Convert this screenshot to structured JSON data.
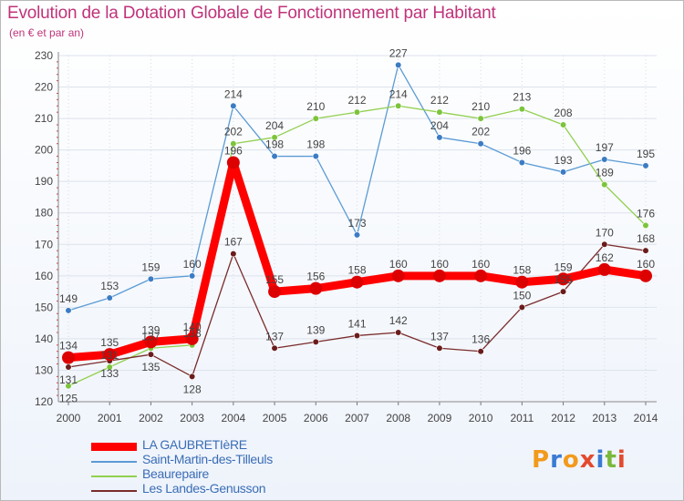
{
  "title": "Evolution de la Dotation Globale de Fonctionnement par Habitant",
  "subtitle": "(en € et par an)",
  "logo": {
    "text": "Proxiti",
    "colors": [
      "#f29a1c",
      "#3a7ad3",
      "#f29a1c",
      "#e34a2e",
      "#3a7ad3",
      "#7ab83c",
      "#e34a2e"
    ]
  },
  "chart_data": {
    "type": "line",
    "title": "Evolution de la Dotation Globale de Fonctionnement par Habitant",
    "subtitle": "(en € et par an)",
    "x": [
      "2000",
      "2001",
      "2002",
      "2003",
      "2004",
      "2005",
      "2006",
      "2007",
      "2008",
      "2009",
      "2010",
      "2011",
      "2012",
      "2013",
      "2014"
    ],
    "y_ticks": [
      "120",
      "130",
      "140",
      "150",
      "160",
      "170",
      "180",
      "190",
      "200",
      "210",
      "220",
      "230"
    ],
    "ylim": [
      120,
      230
    ],
    "grid": true,
    "legend_position": "bottom-left",
    "series": [
      {
        "name": "LA GAUBRETIèRE",
        "color": "#ff0000",
        "marker_color": "#dd0000",
        "width": 9,
        "marker_radius": 7,
        "values": [
          134,
          135,
          139,
          140,
          196,
          155,
          156,
          158,
          160,
          160,
          160,
          158,
          159,
          162,
          160
        ],
        "labels": [
          "134",
          "135",
          "139",
          "140",
          "196",
          "155",
          "156",
          "158",
          "160",
          "160",
          "160",
          "158",
          "159",
          "162",
          "160"
        ]
      },
      {
        "name": "Saint-Martin-des-Tilleuls",
        "color": "#5b9bd5",
        "marker_color": "#3b7cc4",
        "width": 1.3,
        "marker_radius": 3.3,
        "values": [
          149,
          153,
          159,
          160,
          214,
          198,
          198,
          173,
          227,
          204,
          202,
          196,
          193,
          197,
          195
        ],
        "labels": [
          "149",
          "153",
          "159",
          "160",
          "214",
          "198",
          "198",
          "173",
          "227",
          "204",
          "202",
          "196",
          "193",
          "197",
          "195"
        ]
      },
      {
        "name": "Beaurepaire",
        "color": "#92d050",
        "marker_color": "#7cc43c",
        "width": 1.3,
        "marker_radius": 3.3,
        "values": [
          125,
          131,
          137,
          138,
          202,
          204,
          210,
          212,
          214,
          212,
          210,
          213,
          208,
          189,
          176
        ],
        "labels": [
          "125",
          "131",
          "137",
          "138",
          "202",
          "204",
          "210",
          "212",
          "214",
          "212",
          "210",
          "213",
          "208",
          "189",
          "176"
        ]
      },
      {
        "name": "Les Landes-Genusson",
        "color": "#7b2c2c",
        "marker_color": "#6a1c1c",
        "width": 1.3,
        "marker_radius": 3.3,
        "values": [
          131,
          133,
          135,
          128,
          167,
          137,
          139,
          141,
          142,
          137,
          136,
          150,
          155,
          170,
          168
        ],
        "labels": [
          "131",
          "133",
          "135",
          "128",
          "167",
          "137",
          "139",
          "141",
          "142",
          "137",
          "136",
          "150",
          "155",
          "170",
          "168"
        ]
      }
    ]
  }
}
